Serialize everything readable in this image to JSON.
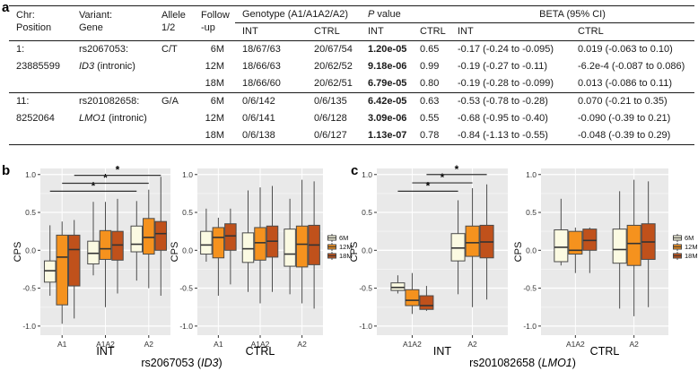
{
  "panel_labels": {
    "a": "a",
    "b": "b",
    "c": "c"
  },
  "table": {
    "headers": {
      "chr": [
        "Chr:",
        "Position"
      ],
      "variant": [
        "Variant:",
        "Gene"
      ],
      "allele": [
        "Allele",
        "1/2"
      ],
      "followup": [
        "Follow",
        "-up"
      ],
      "genotype_group": "Genotype (A1/A1A2/A2)",
      "p_italic": "P",
      "p_rest": " value",
      "beta_group": "BETA (95% CI)",
      "int": "INT",
      "ctrl": "CTRL"
    },
    "rows": [
      {
        "chr": "1:",
        "variant": "rs2067053:",
        "allele": "C/T",
        "fu": "6M",
        "gi": "18/67/63",
        "gc": "20/67/54",
        "pi": "1.20e-05",
        "pc": "0.65",
        "bi": "-0.17 (-0.24 to -0.095)",
        "bc": "0.019 (-0.063 to 0.10)"
      },
      {
        "chr": "23885599",
        "gene": "ID3",
        "gene_suffix": " (intronic)",
        "fu": "12M",
        "gi": "18/66/63",
        "gc": "20/62/52",
        "pi": "9.18e-06",
        "pc": "0.99",
        "bi": "-0.19 (-0.27 to -0.11)",
        "bc": "-6.2e-4 (-0.087 to 0.086)"
      },
      {
        "fu": "18M",
        "gi": "18/66/60",
        "gc": "20/62/51",
        "pi": "6.79e-05",
        "pc": "0.80",
        "bi": "-0.19 (-0.28 to -0.099)",
        "bc": "0.013 (-0.086 to 0.11)"
      },
      {
        "chr": "11:",
        "variant": "rs201082658:",
        "allele": "G/A",
        "fu": "6M",
        "gi": "0/6/142",
        "gc": "0/6/135",
        "pi": "6.42e-05",
        "pc": "0.63",
        "bi": "-0.53 (-0.78 to -0.28)",
        "bc": "0.070 (-0.21 to 0.35)"
      },
      {
        "chr": "8252064",
        "gene": "LMO1",
        "gene_suffix": " (intronic)",
        "fu": "12M",
        "gi": "0/6/141",
        "gc": "0/6/128",
        "pi": "3.09e-06",
        "pc": "0.55",
        "bi": "-0.68 (-0.95 to -0.40)",
        "bc": "-0.090 (-0.39 to 0.21)"
      },
      {
        "fu": "18M",
        "gi": "0/6/138",
        "gc": "0/6/127",
        "pi": "1.13e-07",
        "pc": "0.78",
        "bi": "-0.84 (-1.13 to -0.55)",
        "bc": "-0.048 (-0.39 to 0.29)"
      }
    ]
  },
  "chart_data": {
    "type": "boxplot",
    "ylabel": "CPS",
    "ylim": [
      -1.12,
      1.08
    ],
    "yticks": [
      -1.0,
      -0.5,
      0.0,
      0.5,
      1.0
    ],
    "ytick_labels": [
      "-1.0",
      "-0.5",
      "0.0",
      "0.5",
      "1.0"
    ],
    "yticks_minor": [
      -0.75,
      -0.25,
      0.25,
      0.75
    ],
    "series": [
      "6M",
      "12M",
      "18M"
    ],
    "series_colors": {
      "6M": "#FBFAE2",
      "12M": "#F5921E",
      "18M": "#C0511B"
    },
    "panel_bg": "#E9E9E9",
    "grid_major": "#FFFFFF",
    "grid_minor": "#F3F3F3",
    "box_stroke": "#4a4a4a",
    "legend_position": "right",
    "panels": [
      {
        "panel": "b",
        "axis_title": "INT",
        "groups": [
          {
            "label": "A1",
            "boxes": [
              [
                -0.6,
                -0.42,
                -0.27,
                -0.14,
                0.33
              ],
              [
                -0.97,
                -0.72,
                -0.09,
                0.2,
                0.38
              ],
              [
                -0.9,
                -0.47,
                0.01,
                0.2,
                0.4
              ]
            ]
          },
          {
            "label": "A1A2",
            "boxes": [
              [
                -0.33,
                -0.18,
                -0.04,
                0.12,
                0.64
              ],
              [
                -0.75,
                -0.12,
                0.02,
                0.26,
                0.64
              ],
              [
                -0.57,
                -0.13,
                0.07,
                0.25,
                0.68
              ]
            ]
          },
          {
            "label": "A2",
            "boxes": [
              [
                -0.4,
                -0.02,
                0.08,
                0.32,
                0.65
              ],
              [
                -0.5,
                -0.05,
                0.17,
                0.42,
                0.8
              ],
              [
                -0.6,
                0.0,
                0.22,
                0.38,
                0.97
              ]
            ]
          }
        ],
        "sig_bars": [
          {
            "series": 0,
            "from": 0,
            "to": 2,
            "y": 0.78,
            "label": "*"
          },
          {
            "series": 1,
            "from": 0,
            "to": 2,
            "y": 0.885,
            "label": "*"
          },
          {
            "series": 2,
            "from": 0,
            "to": 2,
            "y": 0.99,
            "label": "*"
          }
        ]
      },
      {
        "panel": "b",
        "axis_title": "CTRL",
        "groups": [
          {
            "label": "A1",
            "boxes": [
              [
                -0.15,
                -0.05,
                0.07,
                0.25,
                0.55
              ],
              [
                -0.6,
                -0.1,
                0.17,
                0.3,
                0.43
              ],
              [
                -0.45,
                0.0,
                0.19,
                0.35,
                0.55
              ]
            ]
          },
          {
            "label": "A1A2",
            "boxes": [
              [
                -0.55,
                -0.16,
                0.02,
                0.23,
                0.79
              ],
              [
                -0.7,
                -0.13,
                0.1,
                0.3,
                0.83
              ],
              [
                -0.55,
                -0.09,
                0.12,
                0.32,
                0.85
              ]
            ]
          },
          {
            "label": "A2",
            "boxes": [
              [
                -0.58,
                -0.21,
                -0.05,
                0.28,
                0.68
              ],
              [
                -0.7,
                -0.22,
                0.08,
                0.32,
                0.93
              ],
              [
                -0.77,
                -0.19,
                0.07,
                0.33,
                0.91
              ]
            ]
          }
        ],
        "sig_bars": []
      },
      {
        "panel": "c",
        "axis_title": "INT",
        "groups": [
          {
            "label": "A1A2",
            "boxes": [
              [
                -0.57,
                -0.53,
                -0.49,
                -0.43,
                -0.33
              ],
              [
                -0.84,
                -0.73,
                -0.66,
                -0.52,
                -0.3
              ],
              [
                -0.8,
                -0.78,
                -0.73,
                -0.6,
                -0.47
              ]
            ]
          },
          {
            "label": "A2",
            "boxes": [
              [
                -0.58,
                -0.14,
                0.03,
                0.22,
                0.66
              ],
              [
                -0.75,
                -0.08,
                0.1,
                0.32,
                0.82
              ],
              [
                -0.65,
                -0.1,
                0.11,
                0.33,
                0.87
              ]
            ]
          }
        ],
        "sig_bars": [
          {
            "series": 0,
            "from": 0,
            "to": 1,
            "y": 0.78,
            "label": "*"
          },
          {
            "series": 1,
            "from": 0,
            "to": 1,
            "y": 0.89,
            "label": "*"
          },
          {
            "series": 2,
            "from": 0,
            "to": 1,
            "y": 1.0,
            "label": "*"
          }
        ]
      },
      {
        "panel": "c",
        "axis_title": "CTRL",
        "groups": [
          {
            "label": "A1A2",
            "boxes": [
              [
                -0.2,
                -0.15,
                0.04,
                0.27,
                0.68
              ],
              [
                -0.3,
                -0.05,
                0.0,
                0.25,
                0.3
              ],
              [
                -0.3,
                0.0,
                0.13,
                0.28,
                0.3
              ]
            ]
          },
          {
            "label": "A2",
            "boxes": [
              [
                -0.77,
                -0.17,
                0.01,
                0.28,
                0.78
              ],
              [
                -0.87,
                -0.2,
                0.09,
                0.33,
                0.93
              ],
              [
                -0.75,
                -0.12,
                0.11,
                0.35,
                0.91
              ]
            ]
          }
        ],
        "sig_bars": []
      }
    ],
    "captions": [
      {
        "prefix": "rs2067053 (",
        "gene": "ID3",
        "suffix": ")"
      },
      {
        "prefix": "rs201082658 (",
        "gene": "LMO1",
        "suffix": ")"
      }
    ]
  }
}
